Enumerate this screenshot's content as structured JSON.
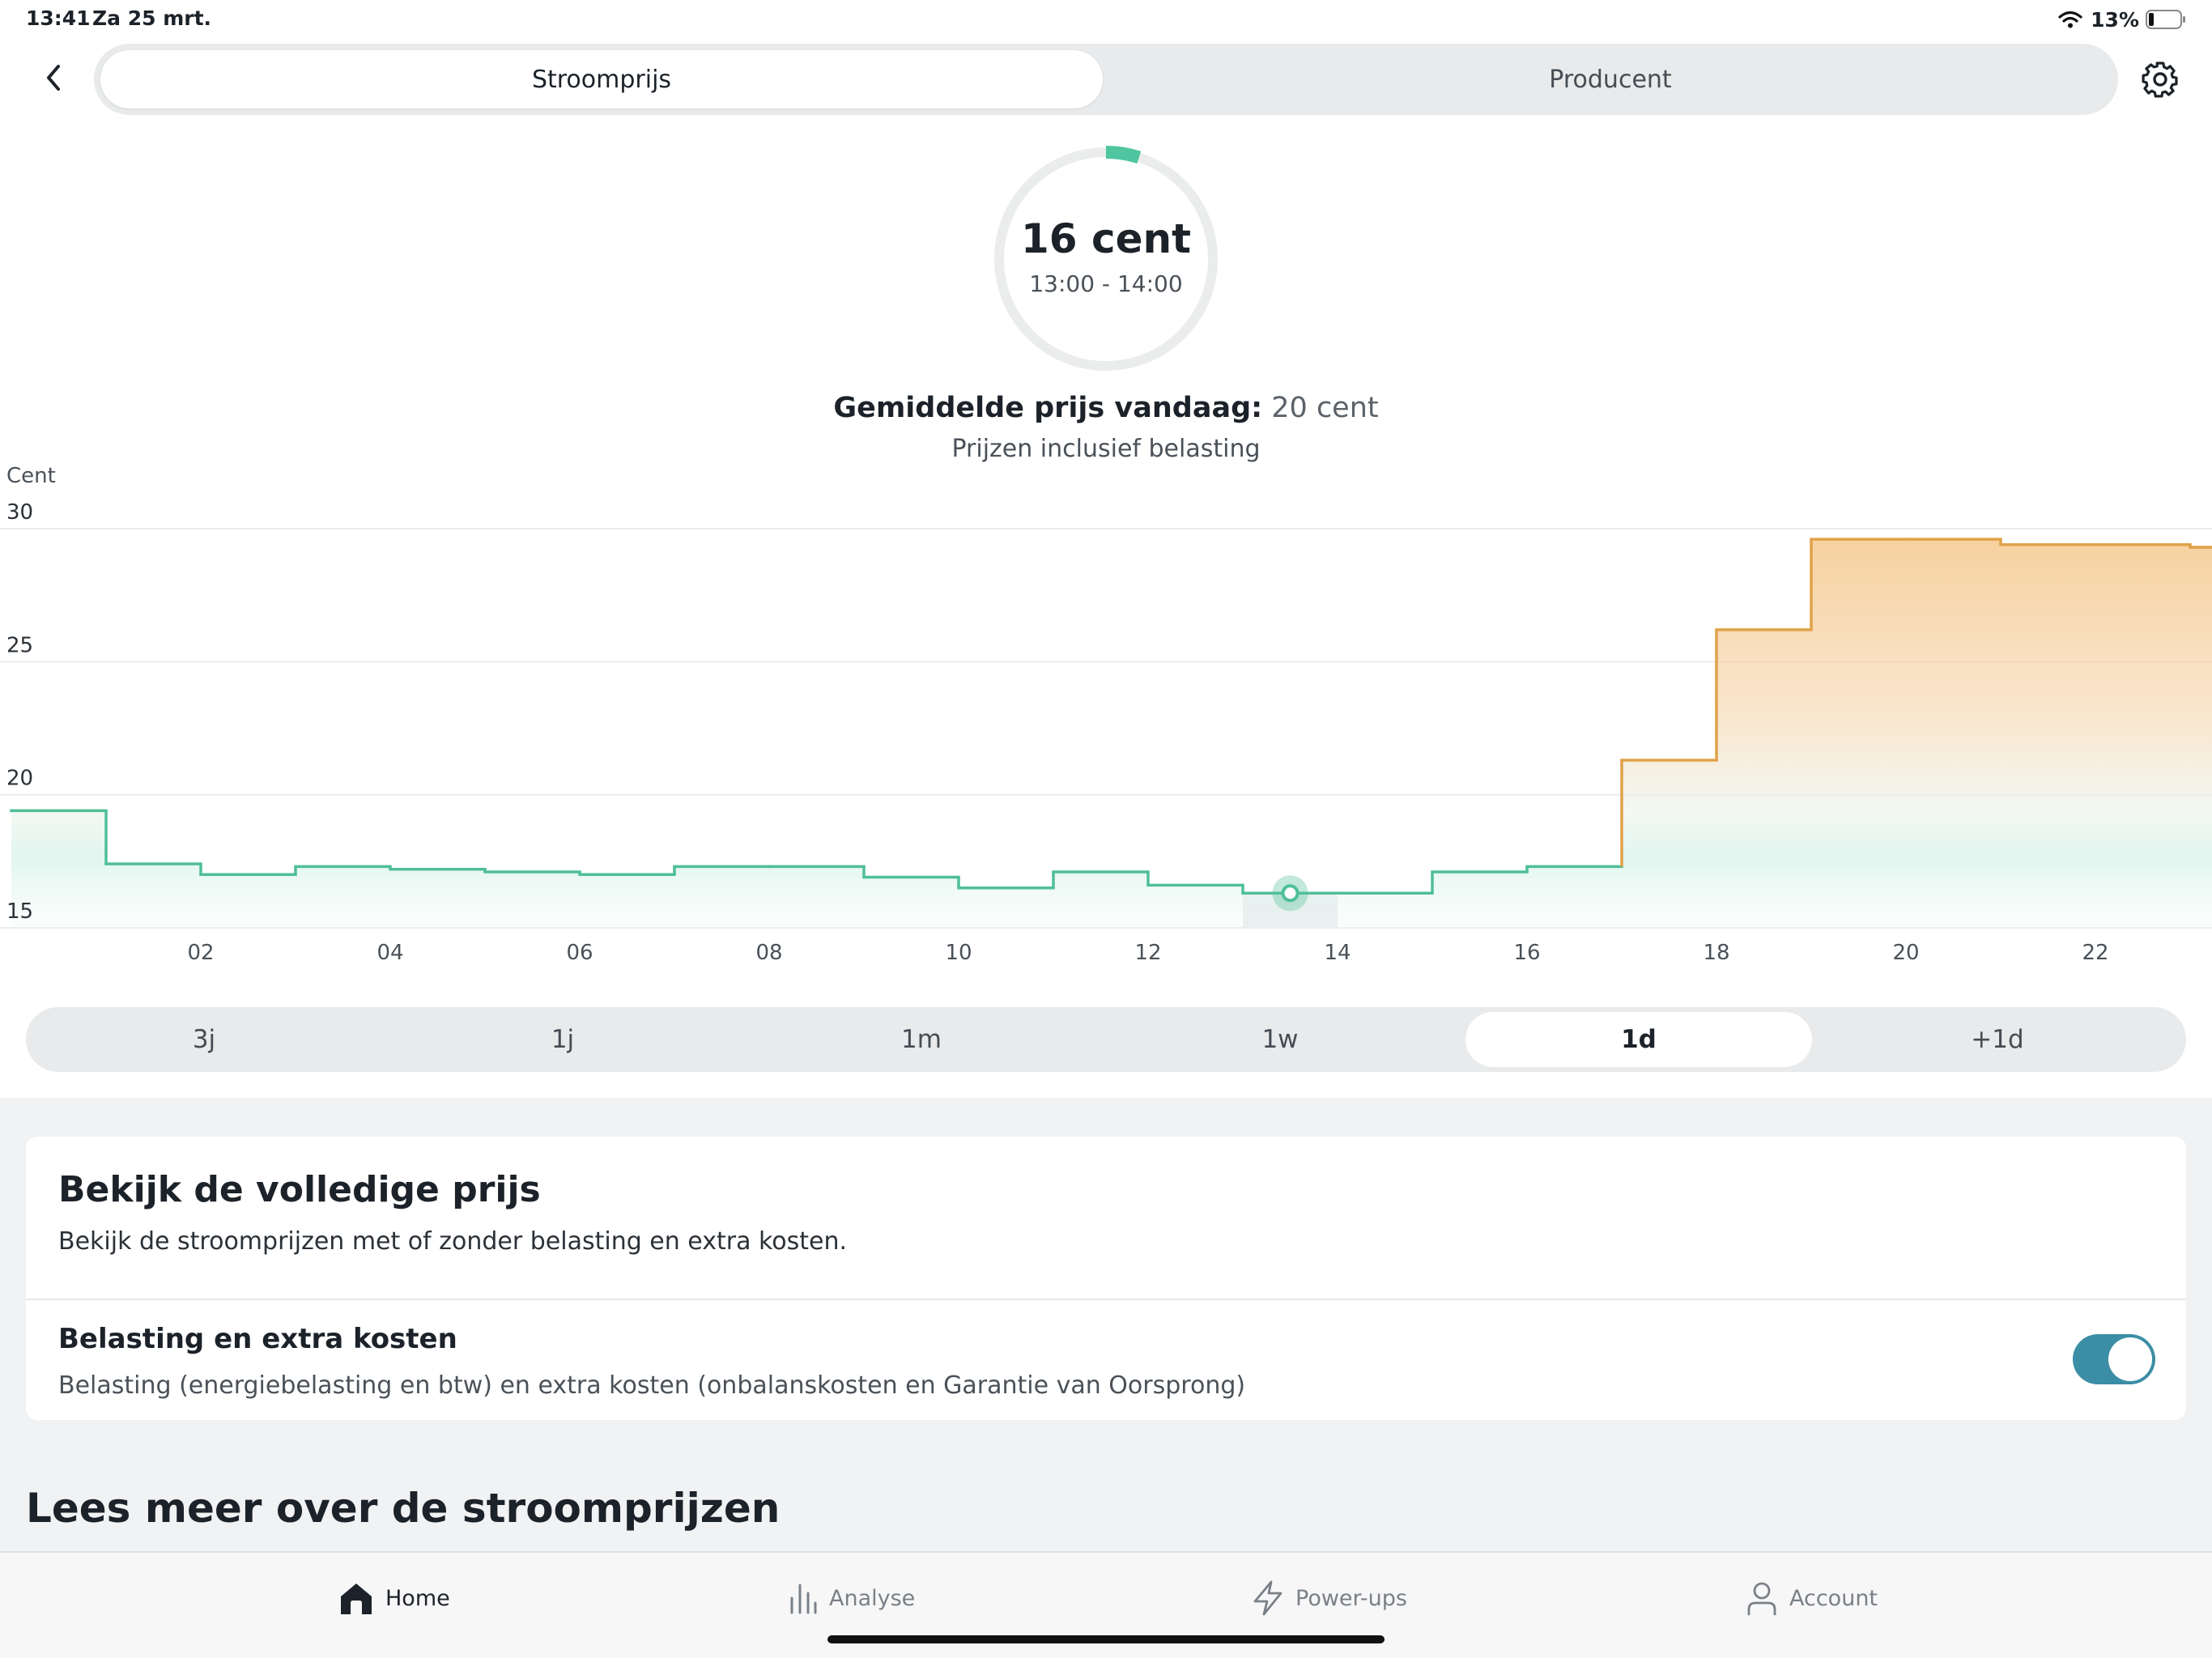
{
  "status_bar": {
    "time": "13:41",
    "date": "Za 25 mrt.",
    "battery": "13%"
  },
  "header": {
    "tabs": [
      {
        "label": "Stroomprijs",
        "active": true
      },
      {
        "label": "Producent",
        "active": false
      }
    ],
    "icons": {
      "back": "chevron-left-icon",
      "settings": "gear-icon"
    }
  },
  "current_price": {
    "value": "16 cent",
    "time_range": "13:00 - 14:00",
    "ring_fill_fraction": 0.05,
    "accent_color": "#4fc6a0"
  },
  "average": {
    "label": "Gemiddelde prijs vandaag:",
    "value": "20 cent"
  },
  "tax_note": "Prijzen inclusief belasting",
  "chart_data": {
    "type": "area",
    "step": true,
    "ylabel": "Cent",
    "ylim": [
      15,
      30
    ],
    "y_ticks": [
      "15",
      "20",
      "25",
      "30"
    ],
    "x_ticks": [
      "02",
      "04",
      "06",
      "08",
      "10",
      "12",
      "14",
      "16",
      "18",
      "20",
      "22"
    ],
    "hours": [
      0,
      1,
      2,
      3,
      4,
      5,
      6,
      7,
      8,
      9,
      10,
      11,
      12,
      13,
      14,
      15,
      16,
      17,
      18,
      19,
      20,
      21,
      22,
      23
    ],
    "values": [
      19.4,
      17.4,
      17.0,
      17.3,
      17.2,
      17.1,
      17.0,
      17.3,
      17.3,
      16.9,
      16.5,
      17.1,
      16.6,
      16.3,
      16.3,
      17.1,
      17.3,
      21.3,
      26.2,
      29.6,
      29.6,
      29.4,
      29.4,
      29.3
    ],
    "selected_hour": 13,
    "low_color": "#4fbf98",
    "high_color": "#e0a24a",
    "grid": true
  },
  "period_selector": {
    "options": [
      {
        "label": "3j",
        "active": false
      },
      {
        "label": "1j",
        "active": false
      },
      {
        "label": "1m",
        "active": false
      },
      {
        "label": "1w",
        "active": false
      },
      {
        "label": "1d",
        "active": true
      },
      {
        "label": "+1d",
        "active": false
      }
    ]
  },
  "full_price_card": {
    "title": "Bekijk de volledige prijs",
    "subtitle": "Bekijk de stroomprijzen met of zonder belasting en extra kosten.",
    "toggle_title": "Belasting en extra kosten",
    "toggle_subtitle": "Belasting (energiebelasting en btw) en extra kosten (onbalanskosten en Garantie van Oorsprong)",
    "toggle_on": true
  },
  "read_more": "Lees meer over de stroomprijzen",
  "tabbar": {
    "items": [
      {
        "label": "Home",
        "icon": "home-icon",
        "active": true
      },
      {
        "label": "Analyse",
        "icon": "bar-chart-icon",
        "active": false
      },
      {
        "label": "Power-ups",
        "icon": "lightning-icon",
        "active": false
      },
      {
        "label": "Account",
        "icon": "person-icon",
        "active": false
      }
    ]
  }
}
